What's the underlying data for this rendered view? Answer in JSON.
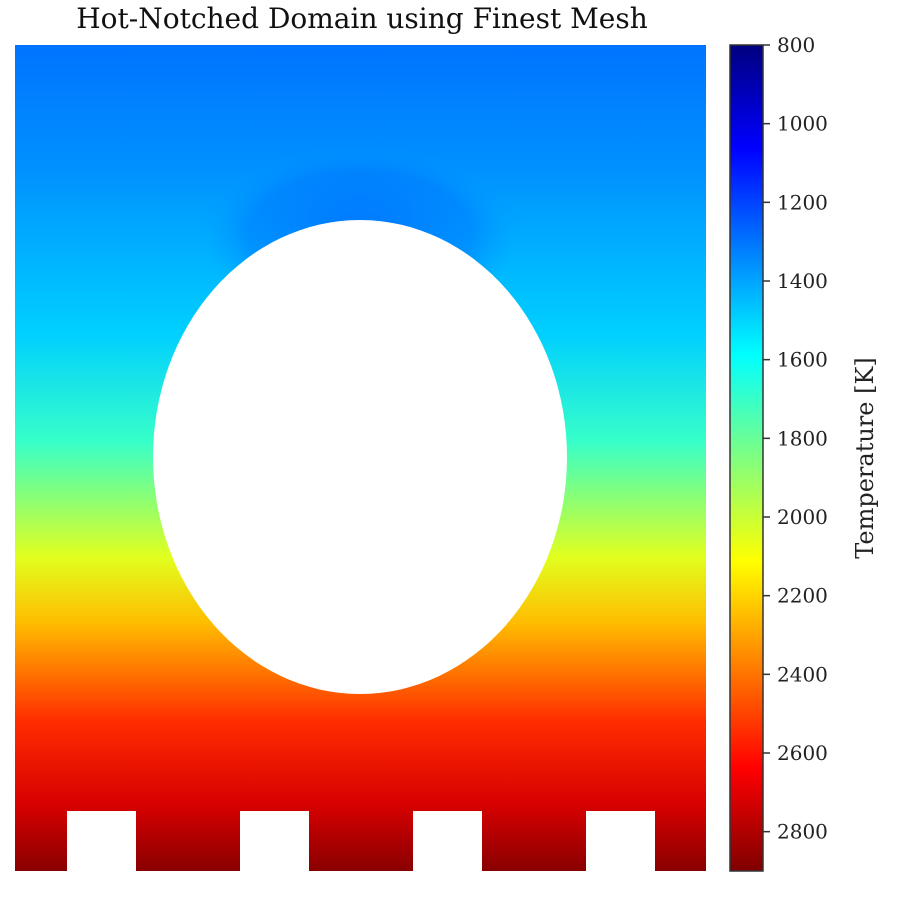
{
  "chart_data": {
    "type": "heatmap",
    "title": "Hot-Notched Domain using Finest Mesh",
    "colorbar": {
      "label": "Temperature [K]",
      "range": [
        800,
        2900
      ],
      "ticks": [
        "800",
        "1000",
        "1200",
        "1400",
        "1600",
        "1800",
        "2000",
        "2200",
        "2400",
        "2600",
        "2800"
      ],
      "colormap": "jet",
      "stops": [
        "#00007f",
        "#0000ff",
        "#0080ff",
        "#00ffff",
        "#80ff80",
        "#ffff00",
        "#ff8000",
        "#ff0000",
        "#7f0000"
      ]
    },
    "field": {
      "variable": "temperature",
      "unit": "K",
      "approx_levels": [
        {
          "region": "top edge",
          "value": 1300
        },
        {
          "region": "above hole",
          "value": 1230
        },
        {
          "region": "mid-height (sides of hole)",
          "value": 1700
        },
        {
          "region": "below hole",
          "value": 2250
        },
        {
          "region": "bottom edge (notches)",
          "value": 2880
        }
      ]
    },
    "geometry": {
      "hole": "elliptical cutout",
      "notches": 4,
      "notch_location": "bottom edge"
    }
  }
}
